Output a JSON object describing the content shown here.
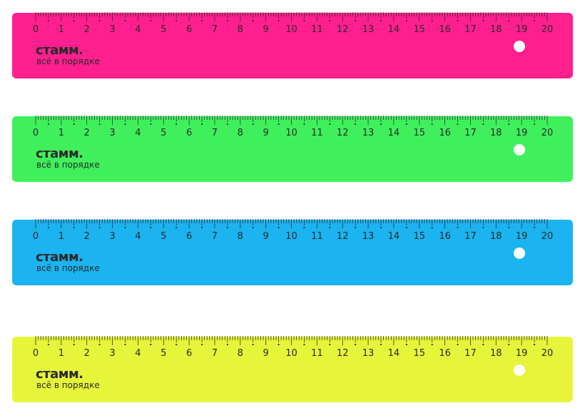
{
  "rulers": [
    {
      "color": "#ff1f8f",
      "brand": "стамм.",
      "tagline": "всё в порядке"
    },
    {
      "color": "#3ff05c",
      "brand": "стамм.",
      "tagline": "всё в порядке"
    },
    {
      "color": "#1bb3f0",
      "brand": "стамм.",
      "tagline": "всё в порядке"
    },
    {
      "color": "#e6f53a",
      "brand": "стамм.",
      "tagline": "всё в порядке"
    }
  ],
  "scale": {
    "min": 0,
    "max": 20,
    "unit": "cm",
    "labels": [
      "0",
      "1",
      "2",
      "3",
      "4",
      "5",
      "6",
      "7",
      "8",
      "9",
      "10",
      "11",
      "12",
      "13",
      "14",
      "15",
      "16",
      "17",
      "18",
      "19",
      "20"
    ]
  }
}
